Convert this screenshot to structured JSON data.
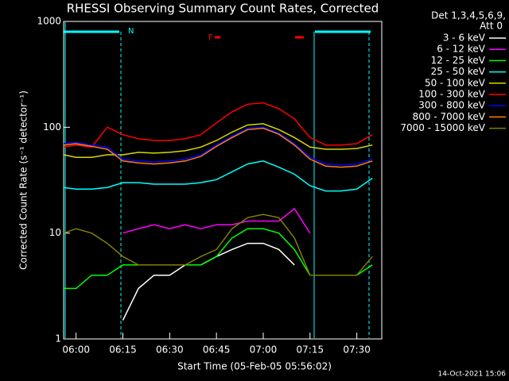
{
  "chart_data": {
    "type": "line",
    "title": "RHESSI Observing Summary Count Rates, Corrected",
    "x_label": "Start Time (05-Feb-05 05:56:02)",
    "y_label": "Corrected Count Rate (s⁻¹ detector⁻¹)",
    "legend_title": [
      "Det 1,3,4,5,6,9,",
      "Att 0"
    ],
    "annotations": [
      "N",
      "F"
    ],
    "footer": "14-Oct-2021 15:06",
    "log_y": true,
    "x": [
      "05:56",
      "06:00",
      "06:05",
      "06:10",
      "06:15",
      "06:20",
      "06:25",
      "06:30",
      "06:35",
      "06:40",
      "06:45",
      "06:50",
      "06:55",
      "07:00",
      "07:05",
      "07:10",
      "07:15",
      "07:20",
      "07:25",
      "07:30",
      "07:35"
    ],
    "xlim": [
      "05:56",
      "07:38"
    ],
    "xticks": [
      "06:00",
      "06:15",
      "06:30",
      "06:45",
      "07:00",
      "07:15",
      "07:30"
    ],
    "ylim": [
      1,
      1000
    ],
    "yticks": [
      1,
      10,
      100,
      1000
    ],
    "series": [
      {
        "name": "3 - 6 keV",
        "color": "#ffffff",
        "values": [
          null,
          null,
          null,
          null,
          1.5,
          3,
          4,
          4,
          5,
          5,
          6,
          7,
          8,
          8,
          7,
          5,
          null,
          null,
          null,
          null,
          null
        ]
      },
      {
        "name": "6 - 12 keV",
        "color": "#ff00ff",
        "values": [
          null,
          null,
          null,
          null,
          10,
          11,
          12,
          11,
          12,
          11,
          12,
          12,
          13,
          13,
          13,
          17,
          10,
          null,
          null,
          null,
          null
        ]
      },
      {
        "name": "12 - 25 keV",
        "color": "#00ff00",
        "values": [
          3,
          3,
          4,
          4,
          5,
          5,
          5,
          5,
          5,
          5,
          6,
          9,
          11,
          11,
          10,
          7,
          4,
          4,
          4,
          4,
          5
        ]
      },
      {
        "name": "25 - 50 keV",
        "color": "#00ffff",
        "values": [
          27,
          26,
          26,
          27,
          30,
          30,
          29,
          29,
          29,
          30,
          32,
          38,
          45,
          48,
          42,
          36,
          28,
          25,
          25,
          26,
          33
        ]
      },
      {
        "name": "50 - 100 keV",
        "color": "#d8d800",
        "values": [
          55,
          52,
          52,
          55,
          55,
          58,
          57,
          58,
          60,
          65,
          75,
          90,
          105,
          108,
          95,
          80,
          65,
          62,
          62,
          63,
          68
        ]
      },
      {
        "name": "100 - 300 keV",
        "color": "#ff0000",
        "values": [
          65,
          68,
          65,
          100,
          85,
          78,
          75,
          75,
          78,
          85,
          110,
          140,
          165,
          170,
          150,
          120,
          80,
          68,
          68,
          70,
          85
        ]
      },
      {
        "name": "300 - 800 keV",
        "color": "#0000ff",
        "values": [
          70,
          72,
          68,
          65,
          50,
          48,
          47,
          48,
          50,
          55,
          68,
          82,
          98,
          100,
          88,
          70,
          52,
          45,
          44,
          45,
          50
        ]
      },
      {
        "name": "800 - 7000 keV",
        "color": "#ff8000",
        "values": [
          68,
          70,
          66,
          62,
          48,
          46,
          45,
          46,
          48,
          53,
          66,
          80,
          95,
          98,
          86,
          68,
          50,
          43,
          42,
          43,
          48
        ]
      },
      {
        "name": "7000 - 15000 keV",
        "color": "#808000",
        "values": [
          10,
          11,
          10,
          8,
          6,
          5,
          5,
          5,
          5,
          6,
          7,
          11,
          14,
          15,
          14,
          9,
          4,
          4,
          4,
          4,
          6
        ]
      }
    ]
  }
}
